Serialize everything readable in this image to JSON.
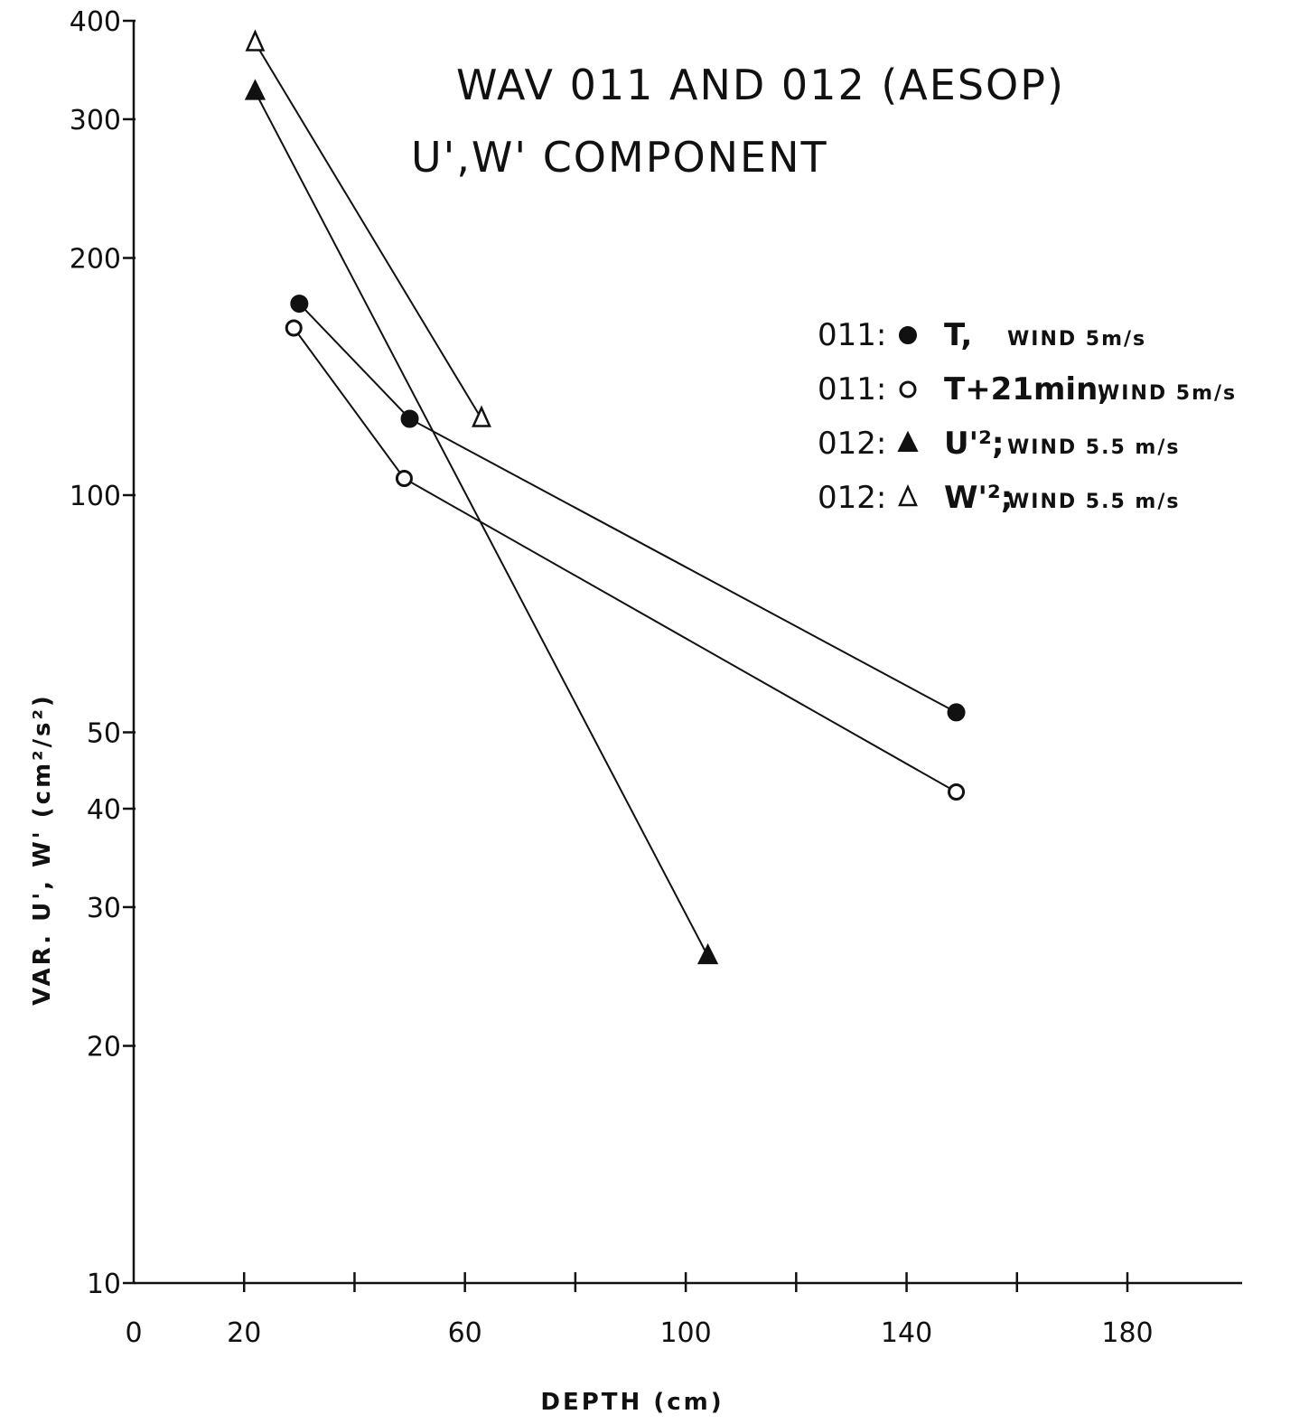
{
  "chart_data": {
    "type": "line",
    "title": "WAV 011 AND 012 (AESOP)",
    "subtitle": "U',W' COMPONENT",
    "xlabel": "DEPTH (cm)",
    "ylabel": "VAR. U', W' (cm²/s²)",
    "xlim": [
      0,
      200
    ],
    "ylim": [
      10,
      400
    ],
    "yscale": "log",
    "x_ticks": [
      0,
      20,
      60,
      100,
      140,
      180
    ],
    "x_minor_ticks": [
      20,
      40,
      60,
      80,
      100,
      120,
      140,
      160,
      180
    ],
    "y_ticks": [
      10,
      20,
      30,
      40,
      50,
      100,
      200,
      300,
      400
    ],
    "grid": false,
    "legend_position": "right",
    "series": [
      {
        "name": "011: ● T, WIND 5m/s",
        "legend_id": "011",
        "legend_label": "T,",
        "legend_wind": "WIND 5m/s",
        "marker": "filled-circle",
        "x": [
          30,
          50,
          149
        ],
        "y": [
          175,
          125,
          53
        ]
      },
      {
        "name": "011: ○ T+21min, WIND 5m/s",
        "legend_id": "011",
        "legend_label": "T+21min,",
        "legend_wind": "WIND 5m/s",
        "marker": "open-circle",
        "x": [
          29,
          49,
          149
        ],
        "y": [
          163,
          105,
          42
        ]
      },
      {
        "name": "012: ▲ U'², WIND 5.5 m/s",
        "legend_id": "012",
        "legend_label": "U'²;",
        "legend_wind": "WIND 5.5 m/s",
        "marker": "filled-triangle",
        "x": [
          22,
          104
        ],
        "y": [
          325,
          26
        ]
      },
      {
        "name": "012: Δ W'², WIND 5.5 m/s",
        "legend_id": "012",
        "legend_label": "W'²;",
        "legend_wind": "WIND 5.5 m/s",
        "marker": "open-triangle",
        "x": [
          22,
          63
        ],
        "y": [
          375,
          125
        ]
      }
    ]
  }
}
